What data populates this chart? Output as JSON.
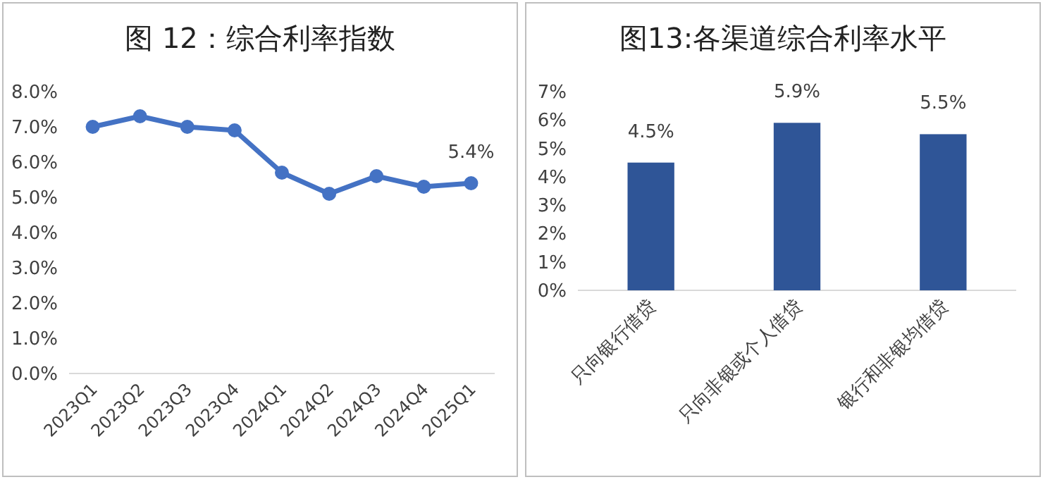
{
  "chart_data": [
    {
      "type": "line",
      "title": "图 12：综合利率指数",
      "categories": [
        "2023Q1",
        "2023Q2",
        "2023Q3",
        "2023Q4",
        "2024Q1",
        "2024Q2",
        "2024Q3",
        "2024Q4",
        "2025Q1"
      ],
      "series": [
        {
          "color": "#4472c4",
          "values": [
            7.0,
            7.3,
            7.0,
            6.9,
            5.7,
            5.1,
            5.6,
            5.3,
            5.4
          ],
          "value_labels": [
            null,
            null,
            null,
            null,
            null,
            null,
            null,
            null,
            "5.4%"
          ]
        }
      ],
      "ylim": [
        0,
        8
      ],
      "yticks": [
        {
          "value": 0,
          "label": "0.0%"
        },
        {
          "value": 1,
          "label": "1.0%"
        },
        {
          "value": 2,
          "label": "2.0%"
        },
        {
          "value": 3,
          "label": "3.0%"
        },
        {
          "value": 4,
          "label": "4.0%"
        },
        {
          "value": 5,
          "label": "5.0%"
        },
        {
          "value": 6,
          "label": "6.0%"
        },
        {
          "value": 7,
          "label": "7.0%"
        },
        {
          "value": 8,
          "label": "8.0%"
        }
      ],
      "marker": "circle",
      "line_style": "solid",
      "grid": false
    },
    {
      "type": "bar",
      "title": "图13:各渠道综合利率水平",
      "categories": [
        "只向银行借贷",
        "只向非银或个人借贷",
        "银行和非银均借贷"
      ],
      "series": [
        {
          "color": "#2f5597",
          "values": [
            4.5,
            5.9,
            5.5
          ],
          "value_labels": [
            "4.5%",
            "5.9%",
            "5.5%"
          ]
        }
      ],
      "ylim": [
        0,
        7
      ],
      "yticks": [
        {
          "value": 0,
          "label": "0%"
        },
        {
          "value": 1,
          "label": "1%"
        },
        {
          "value": 2,
          "label": "2%"
        },
        {
          "value": 3,
          "label": "3%"
        },
        {
          "value": 4,
          "label": "4%"
        },
        {
          "value": 5,
          "label": "5%"
        },
        {
          "value": 6,
          "label": "6%"
        },
        {
          "value": 7,
          "label": "7%"
        }
      ],
      "grid": false
    }
  ]
}
